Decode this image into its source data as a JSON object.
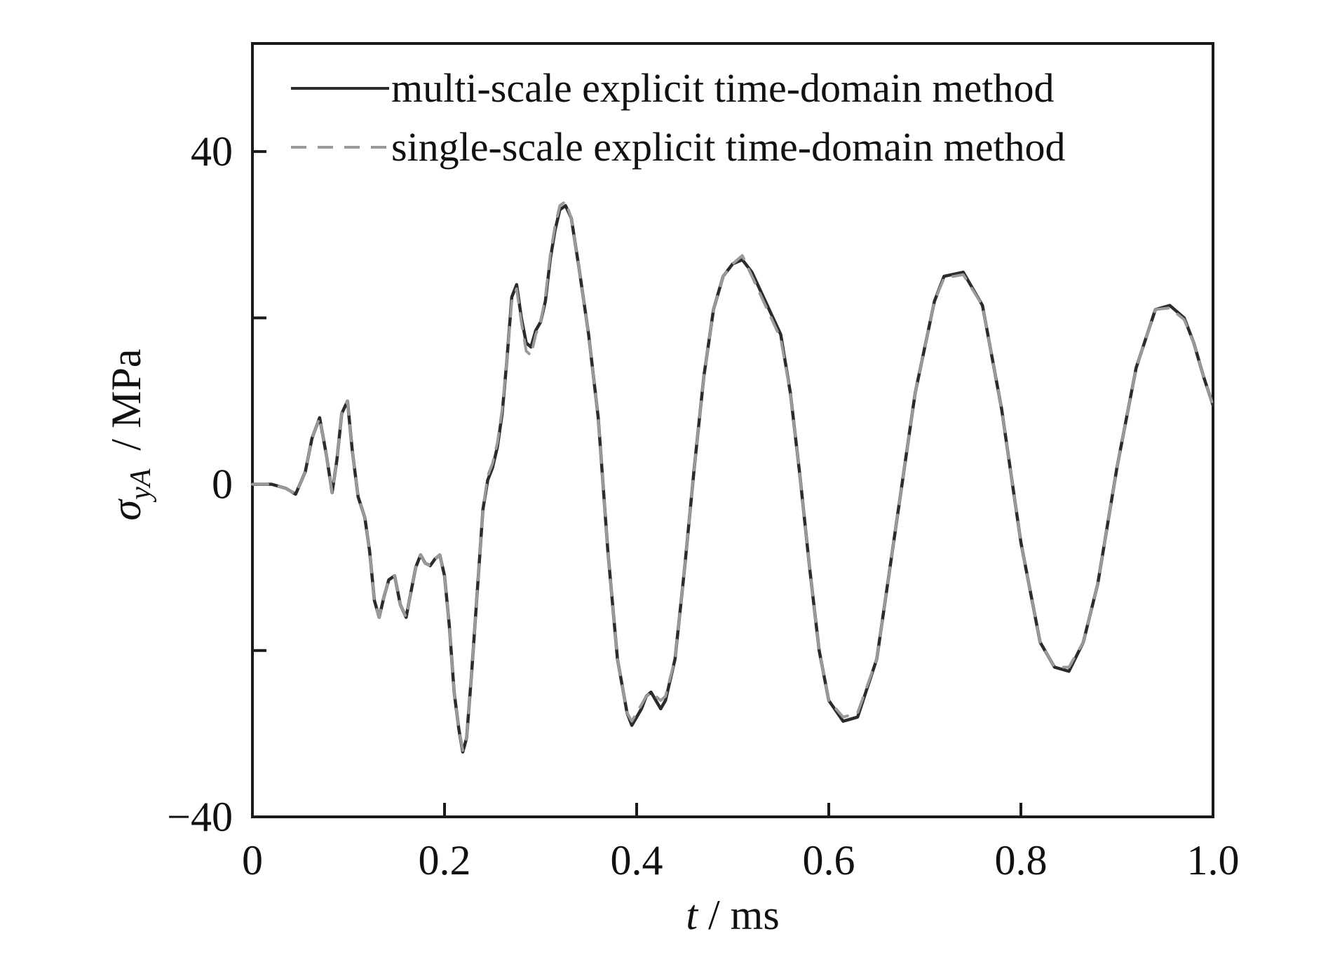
{
  "chart_data": {
    "type": "line",
    "title": "",
    "xlabel": {
      "var": "t",
      "unit": " / ms"
    },
    "ylabel": {
      "var": "σ",
      "subscript": "yA",
      "unit": "/ MPa"
    },
    "xlim": [
      0,
      1.0
    ],
    "ylim": [
      -40,
      53
    ],
    "x_ticks": [
      0,
      0.2,
      0.4,
      0.6,
      0.8,
      1.0
    ],
    "x_tick_labels": [
      "0",
      "0.2",
      "0.4",
      "0.6",
      "0.8",
      "1.0"
    ],
    "y_ticks": [
      -40,
      -20,
      0,
      20,
      40
    ],
    "y_tick_labels": [
      "−40",
      "",
      "0",
      "",
      "40"
    ],
    "grid": false,
    "legend_position": "top",
    "series": [
      {
        "name": "multi-scale explicit time-domain method",
        "style": "solid",
        "color": "#2b2b2b",
        "x": [
          0,
          0.02,
          0.035,
          0.045,
          0.055,
          0.062,
          0.07,
          0.077,
          0.083,
          0.088,
          0.093,
          0.099,
          0.104,
          0.11,
          0.117,
          0.122,
          0.127,
          0.132,
          0.137,
          0.142,
          0.148,
          0.154,
          0.16,
          0.165,
          0.17,
          0.175,
          0.18,
          0.185,
          0.19,
          0.195,
          0.2,
          0.205,
          0.21,
          0.215,
          0.219,
          0.223,
          0.228,
          0.234,
          0.24,
          0.245,
          0.25,
          0.255,
          0.26,
          0.265,
          0.27,
          0.275,
          0.28,
          0.285,
          0.29,
          0.295,
          0.3,
          0.305,
          0.31,
          0.315,
          0.32,
          0.326,
          0.332,
          0.34,
          0.35,
          0.36,
          0.37,
          0.38,
          0.39,
          0.395,
          0.4,
          0.405,
          0.41,
          0.415,
          0.42,
          0.425,
          0.43,
          0.44,
          0.45,
          0.46,
          0.47,
          0.48,
          0.49,
          0.5,
          0.51,
          0.52,
          0.53,
          0.54,
          0.55,
          0.56,
          0.57,
          0.58,
          0.59,
          0.6,
          0.615,
          0.63,
          0.65,
          0.67,
          0.69,
          0.71,
          0.72,
          0.74,
          0.76,
          0.78,
          0.8,
          0.82,
          0.835,
          0.85,
          0.865,
          0.88,
          0.9,
          0.92,
          0.94,
          0.955,
          0.97,
          0.98,
          0.99,
          1.0
        ],
        "y": [
          0,
          0,
          -0.5,
          -1.2,
          1.5,
          5.5,
          8.0,
          3.5,
          -1.0,
          3.0,
          8.5,
          10.0,
          4.0,
          -1.5,
          -4.0,
          -8.0,
          -14.0,
          -16.0,
          -13.5,
          -11.5,
          -11.0,
          -14.5,
          -16.0,
          -13.0,
          -10.0,
          -8.5,
          -9.5,
          -9.8,
          -9.0,
          -8.5,
          -11.0,
          -17.0,
          -25.0,
          -29.5,
          -32.2,
          -30.5,
          -23.0,
          -13.0,
          -3.0,
          0.5,
          2.0,
          4.5,
          8.5,
          15.0,
          22.5,
          24.0,
          20.0,
          17.0,
          16.5,
          18.5,
          19.5,
          22.0,
          27.0,
          30.5,
          33.0,
          33.5,
          32.0,
          26.0,
          18.0,
          8.0,
          -8.0,
          -21.0,
          -27.5,
          -29.0,
          -28.0,
          -27.0,
          -25.5,
          -25.0,
          -26.0,
          -27.0,
          -26.0,
          -21.0,
          -10.0,
          2.0,
          13.0,
          21.0,
          25.0,
          26.5,
          27.0,
          25.5,
          23.0,
          20.5,
          18.0,
          11.0,
          1.0,
          -10.0,
          -20.0,
          -26.0,
          -28.5,
          -28.0,
          -21.0,
          -5.0,
          11.0,
          22.0,
          25.0,
          25.5,
          21.5,
          9.0,
          -7.0,
          -19.0,
          -22.0,
          -22.5,
          -19.0,
          -12.0,
          2.0,
          14.0,
          21.0,
          21.5,
          20.0,
          17.0,
          13.0,
          9.5
        ]
      },
      {
        "name": "single-scale explicit time-domain method",
        "style": "dashed",
        "color": "#9a9a9a",
        "x": [
          0,
          0.02,
          0.035,
          0.045,
          0.055,
          0.062,
          0.07,
          0.077,
          0.083,
          0.088,
          0.093,
          0.099,
          0.104,
          0.11,
          0.117,
          0.122,
          0.127,
          0.132,
          0.137,
          0.142,
          0.148,
          0.154,
          0.16,
          0.165,
          0.17,
          0.175,
          0.18,
          0.185,
          0.19,
          0.195,
          0.2,
          0.205,
          0.21,
          0.215,
          0.219,
          0.223,
          0.228,
          0.234,
          0.24,
          0.245,
          0.25,
          0.255,
          0.26,
          0.265,
          0.27,
          0.275,
          0.28,
          0.285,
          0.29,
          0.295,
          0.3,
          0.305,
          0.31,
          0.315,
          0.32,
          0.326,
          0.332,
          0.34,
          0.35,
          0.36,
          0.37,
          0.38,
          0.39,
          0.395,
          0.4,
          0.405,
          0.41,
          0.415,
          0.42,
          0.425,
          0.43,
          0.44,
          0.45,
          0.46,
          0.47,
          0.48,
          0.49,
          0.5,
          0.51,
          0.52,
          0.53,
          0.54,
          0.55,
          0.56,
          0.57,
          0.58,
          0.59,
          0.6,
          0.615,
          0.63,
          0.65,
          0.67,
          0.69,
          0.71,
          0.72,
          0.74,
          0.76,
          0.78,
          0.8,
          0.82,
          0.835,
          0.85,
          0.865,
          0.88,
          0.9,
          0.92,
          0.94,
          0.955,
          0.97,
          0.98,
          0.99,
          1.0
        ],
        "y": [
          0,
          0,
          -0.5,
          -1.2,
          1.5,
          5.5,
          8.0,
          3.5,
          -1.0,
          3.0,
          8.5,
          10.0,
          4.0,
          -1.5,
          -4.0,
          -8.0,
          -14.0,
          -16.0,
          -13.5,
          -11.5,
          -11.0,
          -14.5,
          -16.0,
          -13.0,
          -10.0,
          -8.5,
          -9.5,
          -9.8,
          -9.0,
          -8.5,
          -11.0,
          -17.0,
          -25.0,
          -29.5,
          -32.0,
          -30.5,
          -23.0,
          -13.0,
          -3.0,
          1.0,
          2.5,
          5.0,
          9.0,
          15.0,
          22.0,
          23.5,
          19.5,
          16.0,
          15.5,
          18.0,
          19.5,
          22.5,
          27.5,
          31.0,
          33.5,
          34.0,
          32.0,
          26.0,
          18.0,
          8.0,
          -8.0,
          -21.0,
          -27.5,
          -28.5,
          -27.5,
          -26.5,
          -25.5,
          -25.0,
          -25.5,
          -26.0,
          -25.5,
          -21.0,
          -10.0,
          2.0,
          13.0,
          21.0,
          25.0,
          26.5,
          27.5,
          25.0,
          22.5,
          20.0,
          17.5,
          11.0,
          1.0,
          -10.0,
          -20.0,
          -26.0,
          -28.0,
          -27.5,
          -21.0,
          -5.0,
          11.0,
          22.0,
          24.8,
          25.2,
          21.5,
          9.0,
          -7.0,
          -19.0,
          -22.0,
          -22.0,
          -19.0,
          -12.0,
          2.0,
          14.0,
          21.0,
          21.2,
          19.8,
          17.0,
          13.0,
          9.5
        ]
      }
    ]
  }
}
